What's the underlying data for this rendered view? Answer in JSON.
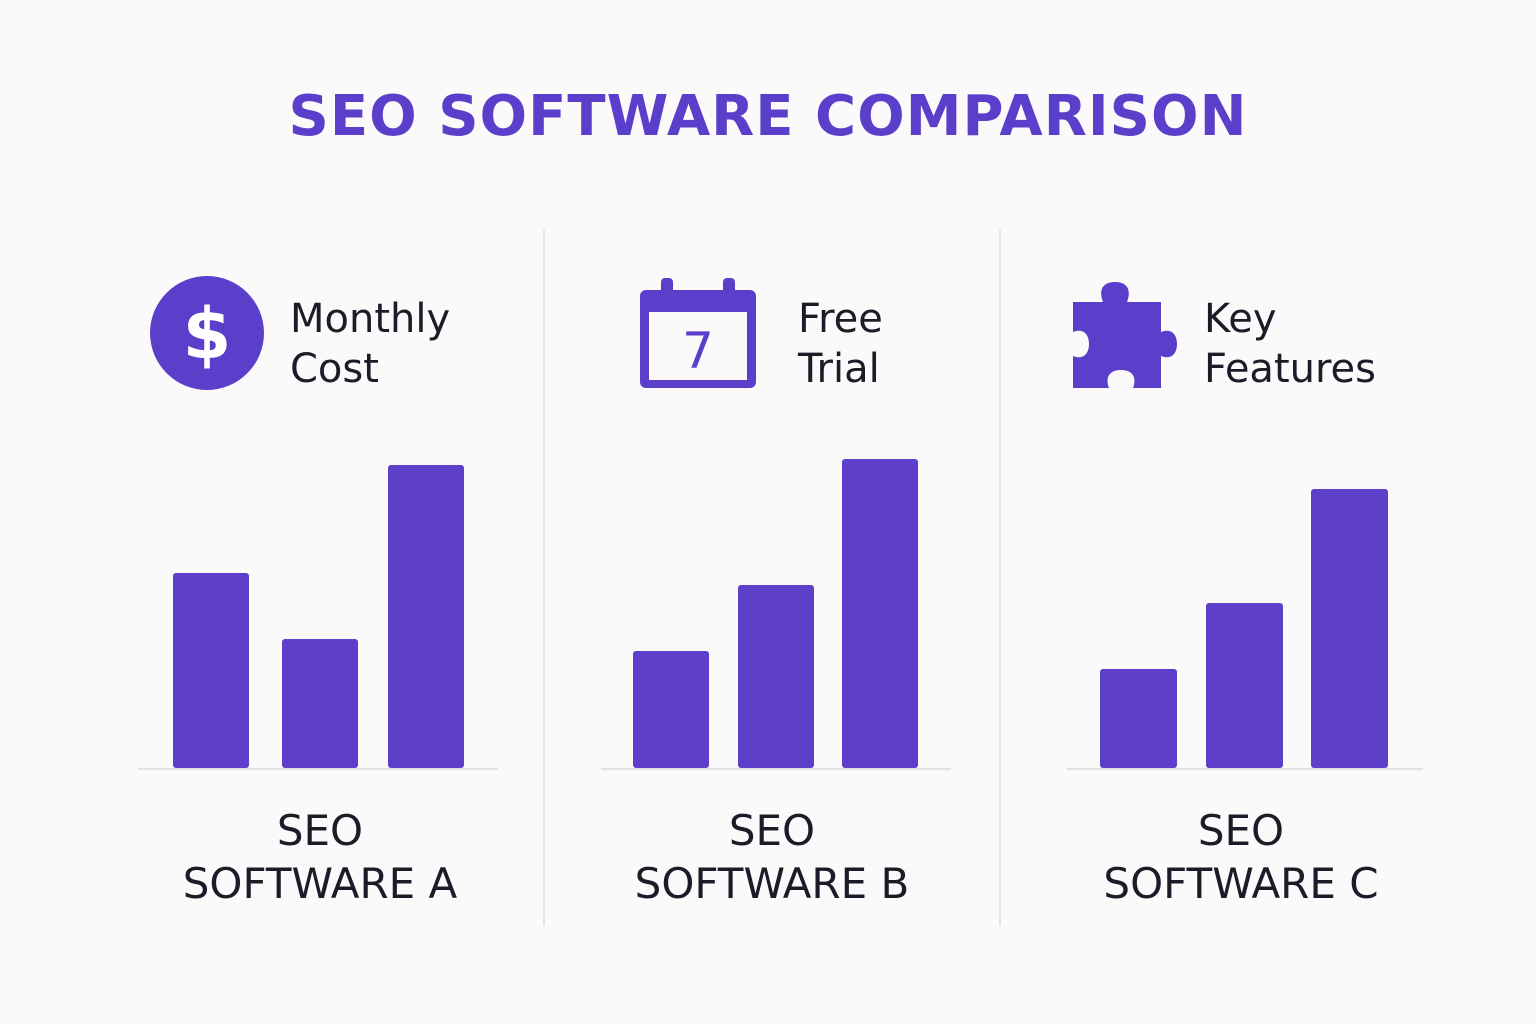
{
  "title": "SEO SOFTWARE COMPARISON",
  "colors": {
    "accent": "#5b3fcb",
    "bar": "#5d3fc9",
    "text": "#1c1c28"
  },
  "panels": [
    {
      "icon": "dollar-icon",
      "metric_line1": "Monthly",
      "metric_line2": "Cost",
      "caption_line1": "SEO",
      "caption_line2": "SOFTWARE A"
    },
    {
      "icon": "calendar-icon",
      "calendar_day": "7",
      "metric_line1": "Free",
      "metric_line2": "Trial",
      "caption_line1": "SEO",
      "caption_line2": "SOFTWARE B"
    },
    {
      "icon": "puzzle-icon",
      "metric_line1": "Key",
      "metric_line2": "Features",
      "caption_line1": "SEO",
      "caption_line2": "SOFTWARE C"
    }
  ],
  "chart_data": [
    {
      "type": "bar",
      "values": [
        65,
        43,
        101
      ]
    },
    {
      "type": "bar",
      "values": [
        39,
        61,
        103
      ]
    },
    {
      "type": "bar",
      "values": [
        33,
        55,
        93
      ]
    }
  ]
}
